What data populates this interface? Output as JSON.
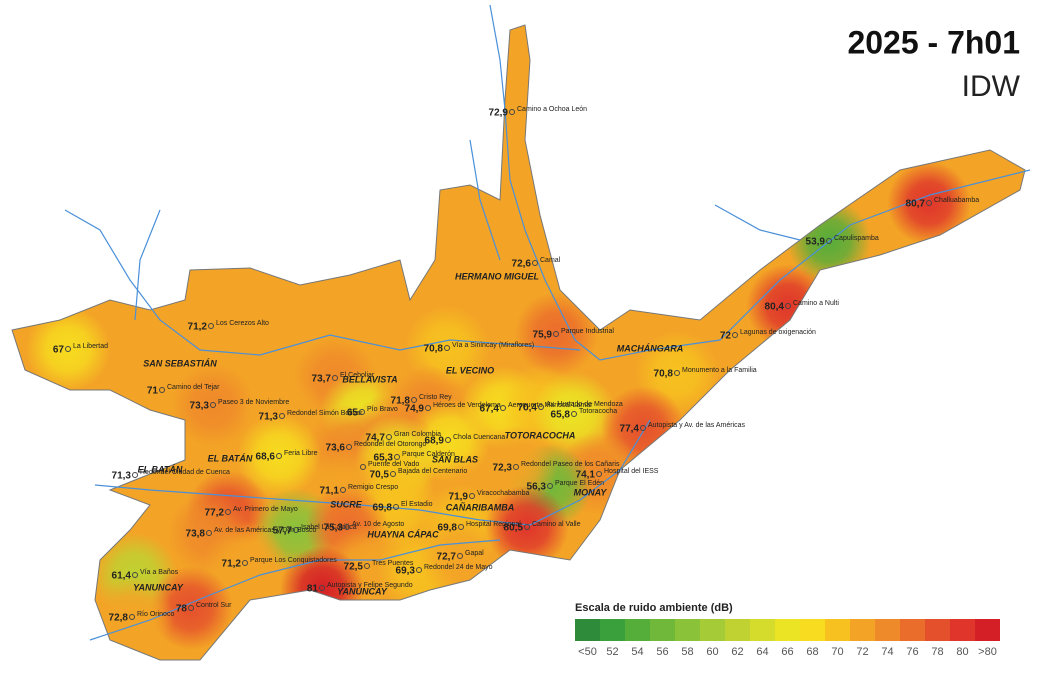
{
  "header": {
    "title": "2025 - 7h01",
    "subtitle": "IDW"
  },
  "stations": [
    {
      "name": "Camino a Ochoa León",
      "value": "72,9"
    },
    {
      "name": "Camal",
      "value": "72,6"
    },
    {
      "name": "Los Cerezos Alto",
      "value": "71,2"
    },
    {
      "name": "La Libertad",
      "value": "67"
    },
    {
      "name": "Parque Industrial",
      "value": "75,9"
    },
    {
      "name": "Vía a Sinincay (Miraflores)",
      "value": "70,8"
    },
    {
      "name": "El Ceboliar",
      "value": "73,7"
    },
    {
      "name": "Camino del Tejar",
      "value": "71"
    },
    {
      "name": "Paseo 3 de Noviembre",
      "value": "73,3"
    },
    {
      "name": "Redondel Simón Bolívar",
      "value": "71,3"
    },
    {
      "name": "Pío Bravo",
      "value": "65"
    },
    {
      "name": "Cristo Rey",
      "value": "71,8"
    },
    {
      "name": "Héroes de Verdeloma",
      "value": "74,9"
    },
    {
      "name": "Aeropuerto Mariscal Lamar",
      "value": "67,4"
    },
    {
      "name": "Av. Hurtado de Mendoza",
      "value": "70,4"
    },
    {
      "name": "Totoracocha",
      "value": "65,8"
    },
    {
      "name": "Monumento a la Familia",
      "value": "70,8"
    },
    {
      "name": "Lagunas de oxigenación",
      "value": "72"
    },
    {
      "name": "Camino a Nulti",
      "value": "80,4"
    },
    {
      "name": "Capulispamba",
      "value": "53,9"
    },
    {
      "name": "Challuabamba",
      "value": "80,7"
    },
    {
      "name": "Autopista y Av. de las Américas",
      "value": "77,4"
    },
    {
      "name": "Hospital del IESS",
      "value": "74,1"
    },
    {
      "name": "Parque El Edén",
      "value": "56,3"
    },
    {
      "name": "Redondel Paseo de los Cañaris",
      "value": "72,3"
    },
    {
      "name": "Chola Cuencana",
      "value": "68,9"
    },
    {
      "name": "Gran Colombia",
      "value": "74,7"
    },
    {
      "name": "Redondel del Otorongo",
      "value": "73,6"
    },
    {
      "name": "Parque Calderón",
      "value": "65,3"
    },
    {
      "name": "Feria Libre",
      "value": "68,6"
    },
    {
      "name": "Puente del Vado"
    },
    {
      "name": "Bajada del Centenario",
      "value": "70,5"
    },
    {
      "name": "Redondel Ciudad de Cuenca",
      "value": "71,3"
    },
    {
      "name": "Remigio Crespo",
      "value": "71,1"
    },
    {
      "name": "El Estadio",
      "value": "69,8"
    },
    {
      "name": "Viracochabamba",
      "value": "71,9"
    },
    {
      "name": "Av. Primero de Mayo",
      "value": "77,2"
    },
    {
      "name": "Isabel La Católica",
      "value": "57,7"
    },
    {
      "name": "Av. 10 de Agosto",
      "value": "75,3"
    },
    {
      "name": "Hospital Regional",
      "value": "69,8"
    },
    {
      "name": "Camino al Valle",
      "value": "80,5"
    },
    {
      "name": "Av. de las Américas y Don Bosco",
      "value": "73,8"
    },
    {
      "name": "Parque Los Conquistadores",
      "value": "71,2"
    },
    {
      "name": "Tres Puentes",
      "value": "72,5"
    },
    {
      "name": "Redondel 24 de Mayo",
      "value": "69,3"
    },
    {
      "name": "Gapal",
      "value": "72,7"
    },
    {
      "name": "Vía a Baños",
      "value": "61,4"
    },
    {
      "name": "Autopista y Felipe Segundo",
      "value": "81"
    },
    {
      "name": "Control Sur",
      "value": "78"
    },
    {
      "name": "Río Orinoco",
      "value": "72,8"
    }
  ],
  "parishes": [
    "HERMANO MIGUEL",
    "SAN SEBASTIÁN",
    "BELLAVISTA",
    "EL VECINO",
    "MACHÁNGARA",
    "TOTORACOCHA",
    "EL BATÁN",
    "EL BATÁN",
    "SAN BLAS",
    "SUCRE",
    "HUAYNA CÁPAC",
    "CAÑARIBAMBA",
    "MONAY",
    "YANUNCAY",
    "YANUNCAY"
  ],
  "legend": {
    "title": "Escala de ruido ambiente (dB)",
    "items": [
      {
        "label": "<50",
        "color": "#2e8b3a"
      },
      {
        "label": "52",
        "color": "#3aa03c"
      },
      {
        "label": "54",
        "color": "#55ad3a"
      },
      {
        "label": "56",
        "color": "#6fb83a"
      },
      {
        "label": "58",
        "color": "#8ac23a"
      },
      {
        "label": "60",
        "color": "#a5cb36"
      },
      {
        "label": "62",
        "color": "#bfd231"
      },
      {
        "label": "64",
        "color": "#d6dc2c"
      },
      {
        "label": "66",
        "color": "#ebe424"
      },
      {
        "label": "68",
        "color": "#f7dc1f"
      },
      {
        "label": "70",
        "color": "#f7c21f"
      },
      {
        "label": "72",
        "color": "#f3a426"
      },
      {
        "label": "74",
        "color": "#ef8a2a"
      },
      {
        "label": "76",
        "color": "#eb6d2c"
      },
      {
        "label": "78",
        "color": "#e5502c"
      },
      {
        "label": "80",
        "color": "#df352b"
      },
      {
        "label": ">80",
        "color": "#d41f26"
      }
    ]
  }
}
